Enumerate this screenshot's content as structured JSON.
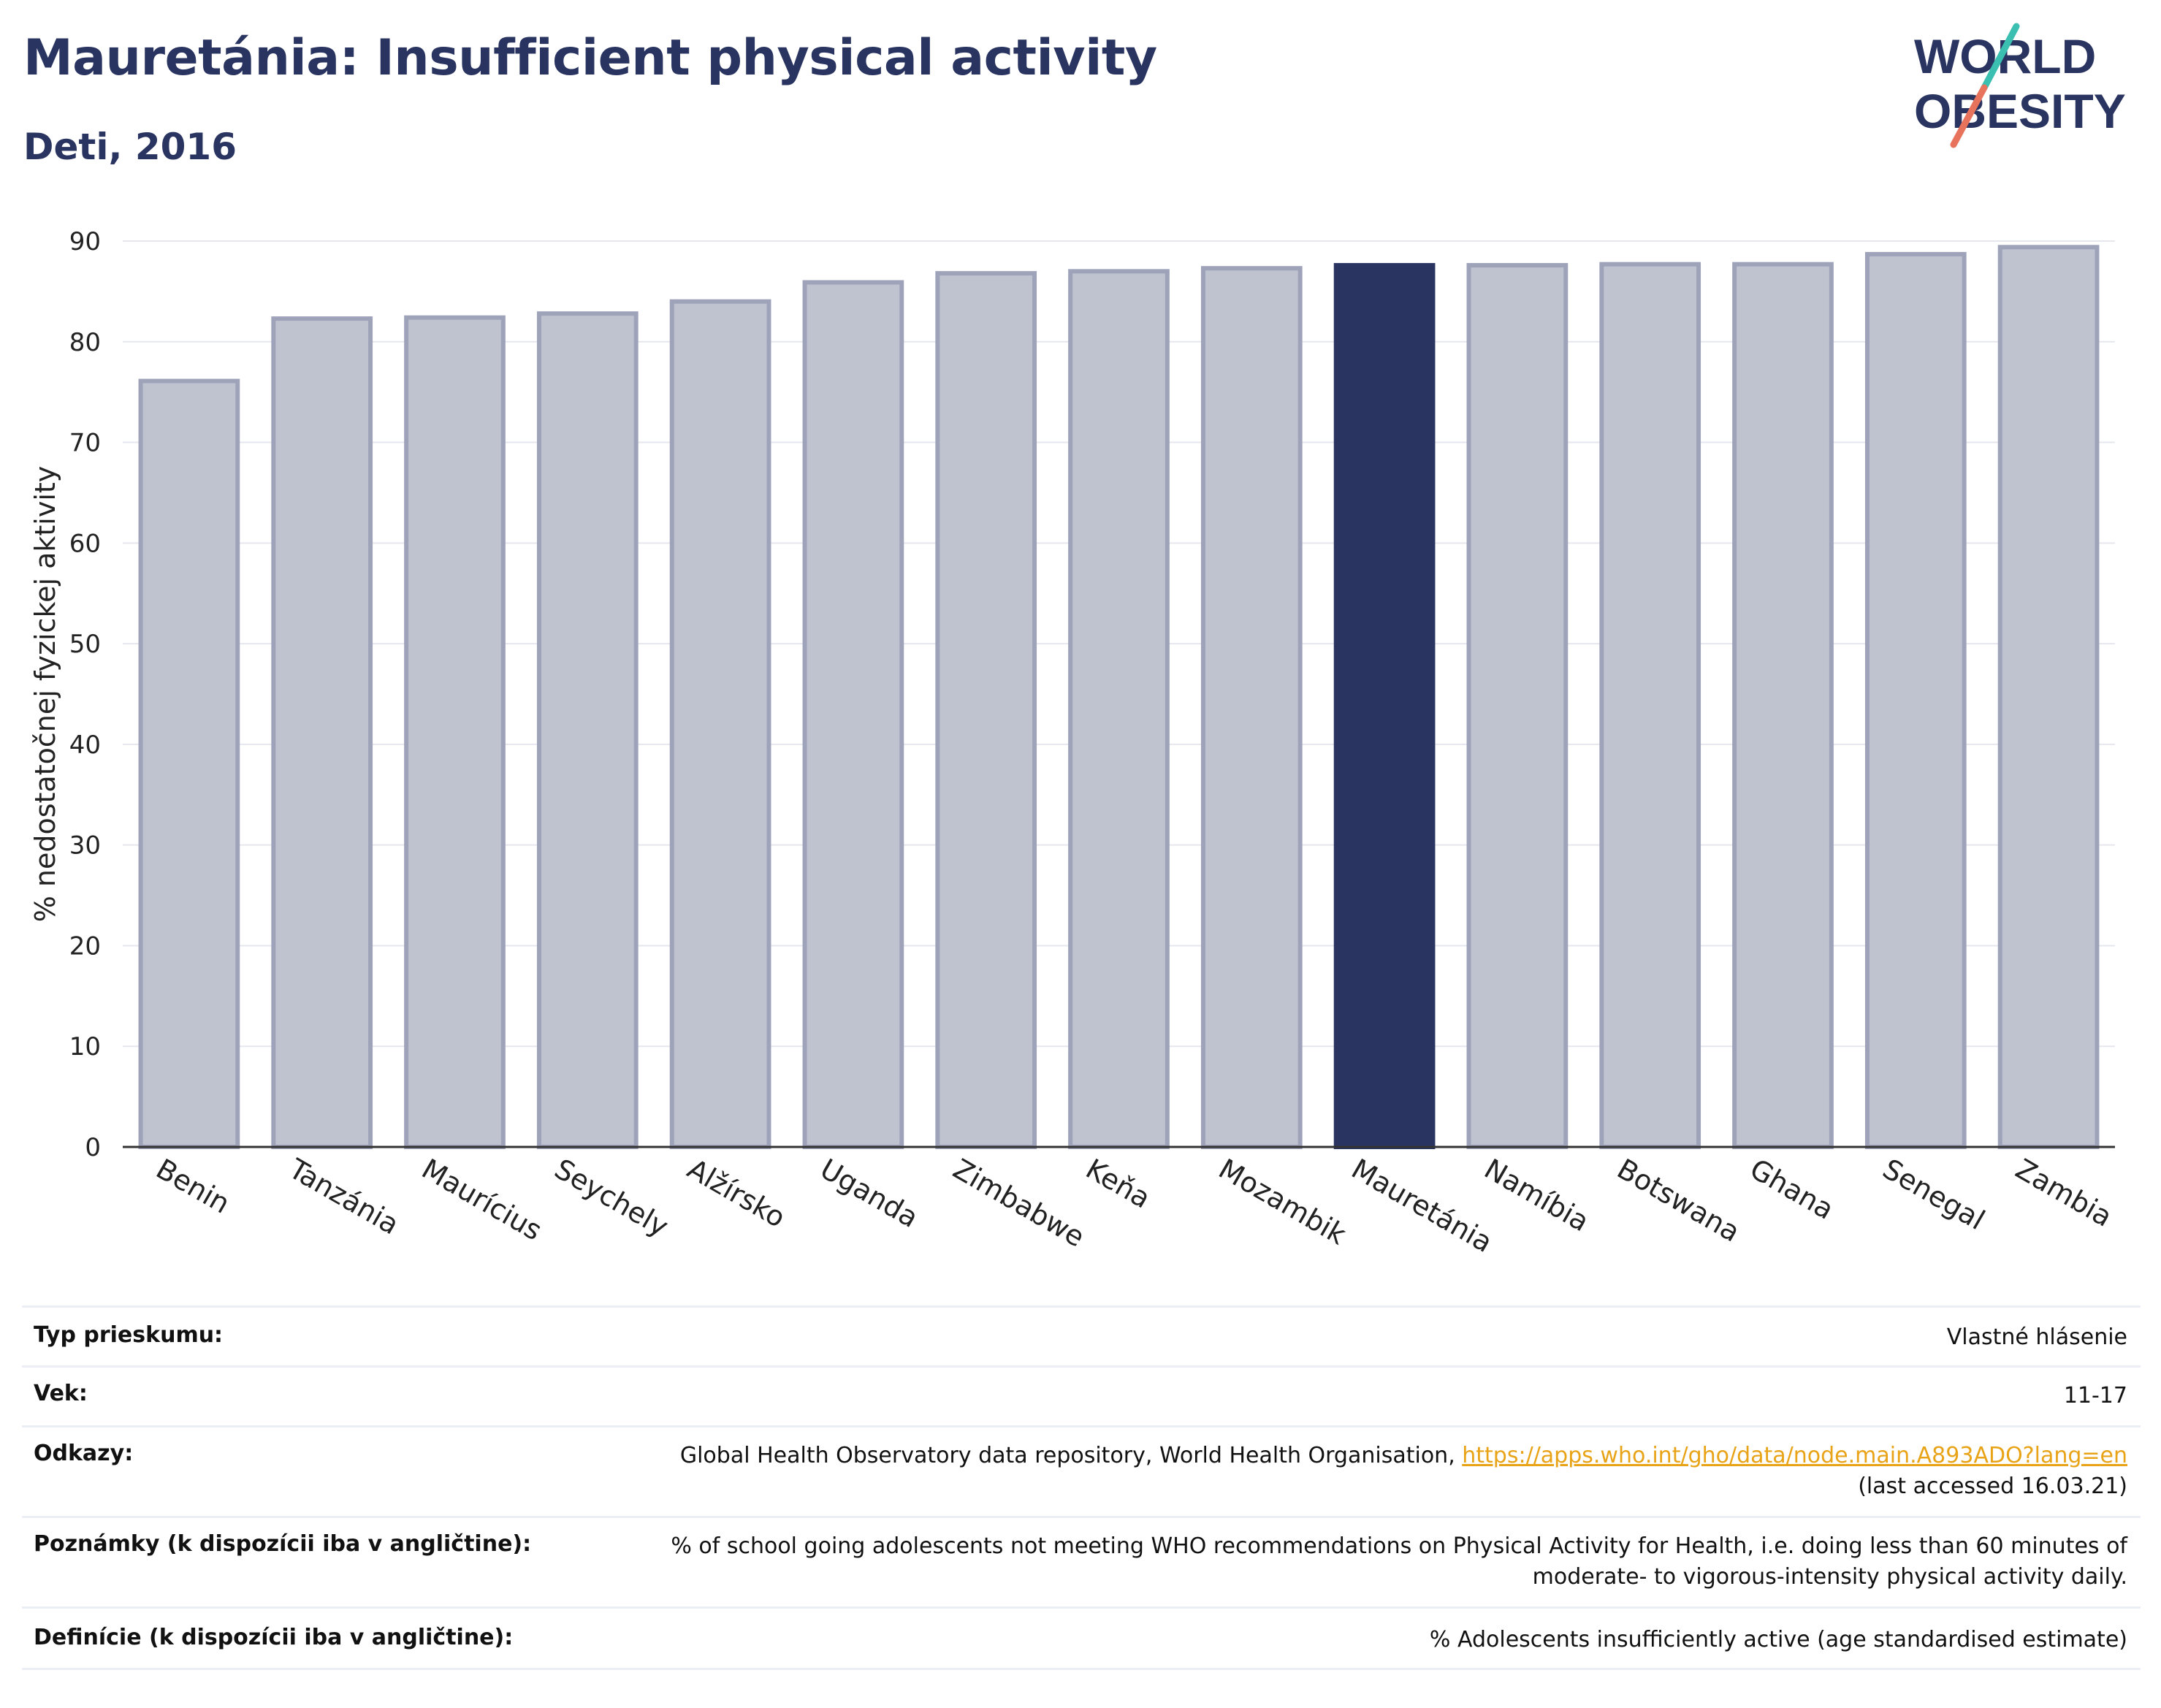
{
  "header": {
    "title": "Mauretánia: Insufficient physical activity",
    "subtitle": "Deti, 2016"
  },
  "logo": {
    "line1": "WORLD",
    "line2": "OBESITY"
  },
  "colors": {
    "brand": "#2a3461",
    "bar_default": "#bfc2cf",
    "bar_default_border": "#9ea3ba",
    "bar_highlight": "#2a3461",
    "link": "#e8a317",
    "logo_teal": "#3bbfb0",
    "logo_coral": "#e8735c"
  },
  "chart_data": {
    "type": "bar",
    "categories": [
      "Benin",
      "Tanzánia",
      "Maurícius",
      "Seychely",
      "Alžírsko",
      "Uganda",
      "Zimbabwe",
      "Keňa",
      "Mozambik",
      "Mauretánia",
      "Namíbia",
      "Botswana",
      "Ghana",
      "Senegal",
      "Zambia"
    ],
    "values": [
      76.1,
      82.3,
      82.4,
      82.8,
      84.0,
      85.9,
      86.8,
      87.0,
      87.3,
      87.6,
      87.6,
      87.7,
      87.7,
      88.7,
      89.4
    ],
    "highlight": "Mauretánia",
    "ylabel": "% nedostatočnej fyzickej aktivity",
    "xlabel": "",
    "ylim": [
      0,
      90
    ],
    "yticks": [
      0,
      10,
      20,
      30,
      40,
      50,
      60,
      70,
      80,
      90
    ],
    "grid": true
  },
  "footer": {
    "survey_type": {
      "label": "Typ prieskumu:",
      "value": "Vlastné hlásenie"
    },
    "age": {
      "label": "Vek:",
      "value": "11-17"
    },
    "references": {
      "label": "Odkazy:",
      "text": "Global Health Observatory data repository, World Health Organisation, ",
      "link": "https://apps.who.int/gho/data/node.main.A893ADO?lang=en",
      "accessed": "(last accessed 16.03.21)"
    },
    "notes": {
      "label": "Poznámky (k dispozícii iba v angličtine):",
      "line1": "% of school going adolescents not meeting WHO recommendations on Physical Activity for Health, i.e. doing less than 60 minutes of",
      "line2": "moderate- to vigorous-intensity physical activity daily."
    },
    "definitions": {
      "label": "Definície (k dispozícii iba v angličtine):",
      "value": "% Adolescents insufficiently active (age standardised estimate)"
    }
  }
}
